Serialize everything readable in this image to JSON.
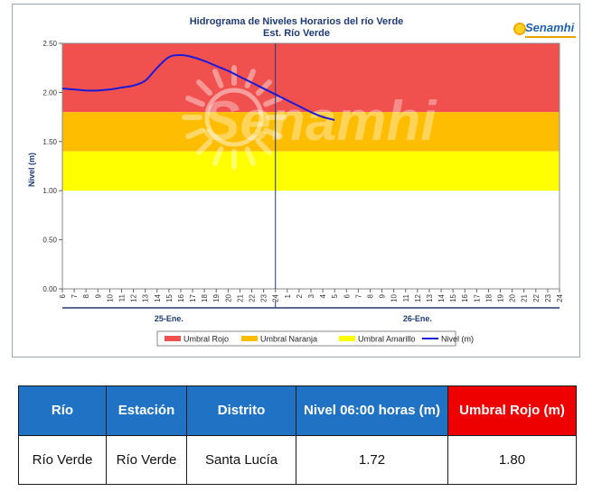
{
  "chart_data": {
    "type": "line",
    "title": "Hidrograma de Niveles Horarios del río Verde",
    "subtitle": "Est. Río Verde",
    "ylabel": "Nivel (m)",
    "ylim": [
      0,
      2.5
    ],
    "y_ticks": [
      "0.00",
      "0.50",
      "1.00",
      "1.50",
      "2.00",
      "2.50"
    ],
    "x_ticks_day1": [
      "6",
      "7",
      "8",
      "9",
      "10",
      "11",
      "12",
      "13",
      "14",
      "15",
      "16",
      "17",
      "18",
      "19",
      "20",
      "21",
      "22",
      "23",
      "24"
    ],
    "x_ticks_day2": [
      "1",
      "2",
      "3",
      "4",
      "5",
      "6",
      "7",
      "8",
      "9",
      "10",
      "11",
      "12",
      "13",
      "14",
      "15",
      "16",
      "17",
      "18",
      "19",
      "20",
      "21",
      "22",
      "23",
      "24"
    ],
    "day_labels": [
      "25-Ene.",
      "26-Ene."
    ],
    "thresholds": [
      {
        "name": "Umbral Rojo",
        "from": 1.8,
        "to": 2.5,
        "color": "#f0514f"
      },
      {
        "name": "Umbral Naranja",
        "from": 1.4,
        "to": 1.8,
        "color": "#ffbd00"
      },
      {
        "name": "Umbral Amarillo",
        "from": 1.0,
        "to": 1.4,
        "color": "#ffff00"
      }
    ],
    "series": [
      {
        "name": "Nivel (m)",
        "color": "#1a1ad8",
        "x": [
          0,
          1,
          2,
          3,
          4,
          5,
          6,
          7,
          8,
          9,
          10,
          11,
          12,
          13,
          14,
          15,
          16,
          17,
          18,
          19,
          20,
          21,
          22,
          23,
          24
        ],
        "values": [
          2.04,
          2.03,
          2.02,
          2.02,
          2.03,
          2.05,
          2.07,
          2.12,
          2.25,
          2.36,
          2.38,
          2.36,
          2.32,
          2.27,
          2.22,
          2.16,
          2.1,
          2.04,
          1.98,
          1.92,
          1.86,
          1.8,
          1.75,
          1.72,
          null
        ]
      }
    ],
    "legend": [
      "Umbral Rojo",
      "Umbral Naranja",
      "Umbral Amarillo",
      "Nivel (m)"
    ],
    "legend_position": "bottom",
    "watermark": "Senamhi",
    "logo": "Senamhi"
  },
  "table": {
    "headers": [
      "Río",
      "Estación",
      "Distrito",
      "Nivel 06:00 horas (m)",
      "Umbral Rojo (m)"
    ],
    "row": [
      "Río Verde",
      "Río Verde",
      "Santa Lucía",
      "1.72",
      "1.80"
    ]
  }
}
